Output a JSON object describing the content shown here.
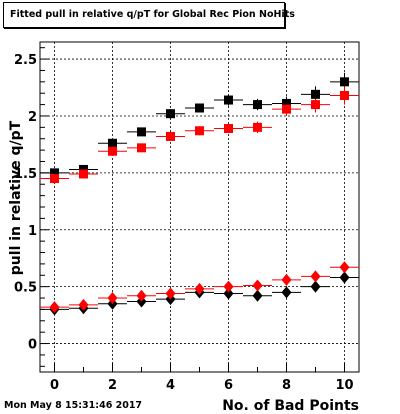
{
  "chart_data": {
    "type": "scatter",
    "title": "Fitted pull in relative q/pT for Global Rec Pion NoHits",
    "xlabel": "No. of Bad Points",
    "ylabel": "pull in relative q/pT",
    "xlim": [
      -0.5,
      10.5
    ],
    "ylim": [
      -0.25,
      2.65
    ],
    "x_ticks": [
      "0",
      "2",
      "4",
      "6",
      "8",
      "10"
    ],
    "y_ticks": [
      "0",
      "0.5",
      "1",
      "1.5",
      "2",
      "2.5"
    ],
    "grid": true,
    "legend": "none",
    "x": [
      0,
      1,
      2,
      3,
      4,
      5,
      6,
      7,
      8,
      9,
      10
    ],
    "series": [
      {
        "marker": "square",
        "color": "#000000",
        "values": [
          1.5,
          1.53,
          1.76,
          1.86,
          2.02,
          2.07,
          2.14,
          2.1,
          2.11,
          2.19,
          2.3
        ],
        "errors": [
          0.03,
          0.03,
          0.04,
          0.03,
          0.04,
          0.04,
          0.05,
          0.05,
          0.06,
          0.07,
          0.08
        ]
      },
      {
        "marker": "square",
        "color": "#ff0000",
        "values": [
          1.45,
          1.49,
          1.69,
          1.72,
          1.82,
          1.87,
          1.89,
          1.9,
          2.06,
          2.1,
          2.18
        ],
        "errors": [
          0.03,
          0.03,
          0.04,
          0.03,
          0.04,
          0.04,
          0.04,
          0.05,
          0.06,
          0.07,
          0.08
        ]
      },
      {
        "marker": "diamond",
        "color": "#000000",
        "values": [
          0.3,
          0.31,
          0.35,
          0.37,
          0.39,
          0.45,
          0.44,
          0.42,
          0.45,
          0.5,
          0.58
        ],
        "errors": [
          0.02,
          0.02,
          0.02,
          0.02,
          0.03,
          0.03,
          0.03,
          0.03,
          0.04,
          0.05,
          0.05
        ]
      },
      {
        "marker": "diamond",
        "color": "#ff0000",
        "values": [
          0.32,
          0.34,
          0.4,
          0.42,
          0.44,
          0.48,
          0.5,
          0.51,
          0.56,
          0.59,
          0.67
        ],
        "errors": [
          0.02,
          0.02,
          0.02,
          0.02,
          0.03,
          0.03,
          0.03,
          0.03,
          0.04,
          0.05,
          0.05
        ]
      }
    ]
  },
  "footer": {
    "timestamp": "Mon May  8 15:31:46 2017"
  }
}
